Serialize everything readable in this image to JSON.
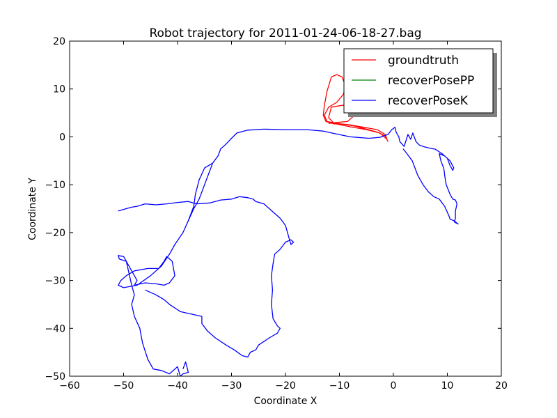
{
  "chart_data": {
    "type": "line",
    "title": "Robot trajectory for 2011-01-24-06-18-27.bag",
    "xlabel": "Coordinate X",
    "ylabel": "Coordinate Y",
    "xlim": [
      -60,
      20
    ],
    "ylim": [
      -50,
      20
    ],
    "xticks": [
      "−60",
      "−50",
      "−40",
      "−30",
      "−20",
      "−10",
      "0",
      "10",
      "20"
    ],
    "yticks": [
      "20",
      "10",
      "0",
      "−10",
      "−20",
      "−30",
      "−40",
      "−50"
    ],
    "grid": false,
    "legend_position": "top-right",
    "series": [
      {
        "name": "groundtruth",
        "color": "#ff0000",
        "points": [
          [
            -1,
            -1
          ],
          [
            -1.5,
            0.2
          ],
          [
            -3,
            1
          ],
          [
            -5,
            1.6
          ],
          [
            -7,
            2.2
          ],
          [
            -9,
            2.6
          ],
          [
            -11,
            2.7
          ],
          [
            -12.5,
            3.2
          ],
          [
            -13,
            4.5
          ],
          [
            -12.8,
            6.5
          ],
          [
            -12.3,
            9.5
          ],
          [
            -11.5,
            12.5
          ],
          [
            -10.5,
            13
          ],
          [
            -9.5,
            12.5
          ],
          [
            -9,
            11
          ],
          [
            -9.2,
            9
          ],
          [
            -10.5,
            7.2
          ],
          [
            -12,
            6.2
          ],
          [
            -12.8,
            4.5
          ],
          [
            -12.3,
            3.2
          ],
          [
            -10.5,
            2.8
          ],
          [
            -8,
            2.5
          ],
          [
            -5.5,
            2
          ],
          [
            -3,
            1.5
          ],
          [
            -1.5,
            0.5
          ],
          [
            -1.2,
            -0.5
          ],
          [
            -2.5,
            0.8
          ],
          [
            -5,
            1.5
          ],
          [
            -8,
            2.1
          ],
          [
            -11,
            2.8
          ],
          [
            -12,
            4
          ],
          [
            -11.5,
            6.2
          ],
          [
            -10,
            6.5
          ],
          [
            -8,
            6.8
          ],
          [
            -7,
            6.2
          ],
          [
            -7.2,
            4.5
          ],
          [
            -8.5,
            3.2
          ],
          [
            -10.5,
            3
          ],
          [
            -12,
            2.8
          ]
        ]
      },
      {
        "name": "recoverPosePP",
        "color": "#008000",
        "points": []
      },
      {
        "name": "recoverPoseK",
        "color": "#0000ff",
        "points": [
          [
            -4.5,
            -0.3
          ],
          [
            -8,
            0
          ],
          [
            -11,
            0.7
          ],
          [
            -13,
            1.2
          ],
          [
            -16,
            1.5
          ],
          [
            -20,
            1.5
          ],
          [
            -24,
            1.6
          ],
          [
            -27,
            1.4
          ],
          [
            -29,
            0.8
          ],
          [
            -30,
            -0.3
          ],
          [
            -31,
            -1.5
          ],
          [
            -32,
            -2.5
          ],
          [
            -32.5,
            -4
          ],
          [
            -33.5,
            -5.5
          ],
          [
            -35,
            -6.5
          ],
          [
            -36,
            -9
          ],
          [
            -36.7,
            -12
          ],
          [
            -37,
            -14.5
          ],
          [
            -38,
            -17.5
          ],
          [
            -39,
            -20
          ],
          [
            -40.5,
            -22.5
          ],
          [
            -41.5,
            -24.5
          ],
          [
            -43,
            -27
          ],
          [
            -45,
            -29
          ],
          [
            -47.5,
            -31
          ],
          [
            -50,
            -31.5
          ],
          [
            -51,
            -31
          ],
          [
            -50.5,
            -30
          ],
          [
            -49.5,
            -29
          ],
          [
            -48,
            -28
          ],
          [
            -45.5,
            -27.5
          ],
          [
            -43.5,
            -27.5
          ],
          [
            -42.5,
            -26
          ],
          [
            -42,
            -25
          ],
          [
            -41,
            -26
          ],
          [
            -40.5,
            -29
          ],
          [
            -41.5,
            -30.5
          ],
          [
            -42.5,
            -31
          ],
          [
            -44,
            -30.7
          ],
          [
            -46,
            -30.5
          ],
          [
            -48,
            -31
          ],
          [
            -47.5,
            -30
          ],
          [
            -48.5,
            -28
          ],
          [
            -49.5,
            -26
          ],
          [
            -50,
            -25
          ],
          [
            -51,
            -24.8
          ],
          [
            -50.8,
            -25.5
          ],
          [
            -49.5,
            -26
          ],
          [
            -49,
            -28.5
          ],
          [
            -48.5,
            -31
          ],
          [
            -48,
            -33
          ],
          [
            -48.5,
            -35
          ],
          [
            -48,
            -37.5
          ],
          [
            -47,
            -40
          ],
          [
            -46.5,
            -43
          ],
          [
            -45.5,
            -46.5
          ],
          [
            -44.5,
            -48.5
          ],
          [
            -43,
            -48.8
          ],
          [
            -41.5,
            -49.5
          ],
          [
            -40,
            -48
          ],
          [
            -39.5,
            -50
          ],
          [
            -39,
            -49.5
          ],
          [
            -38,
            -49.2
          ],
          [
            -38.5,
            -47
          ],
          [
            -39,
            -48.5
          ]
        ]
      },
      {
        "name": "",
        "color": "#0000ff",
        "points": [
          [
            -51,
            -15.5
          ],
          [
            -49.5,
            -15
          ],
          [
            -48.5,
            -14.7
          ],
          [
            -47.5,
            -14.5
          ],
          [
            -46,
            -14
          ],
          [
            -44,
            -14.2
          ],
          [
            -42,
            -14
          ],
          [
            -40,
            -13.7
          ],
          [
            -38,
            -13.5
          ],
          [
            -36.5,
            -14
          ],
          [
            -34,
            -13.8
          ],
          [
            -32,
            -13.2
          ],
          [
            -30,
            -13
          ],
          [
            -28.5,
            -12.5
          ],
          [
            -27,
            -12.7
          ],
          [
            -26,
            -13
          ],
          [
            -25.5,
            -13.5
          ],
          [
            -24,
            -14
          ],
          [
            -22.5,
            -15.5
          ],
          [
            -21,
            -17
          ],
          [
            -20,
            -18.5
          ],
          [
            -19.5,
            -20.5
          ],
          [
            -19,
            -22.5
          ],
          [
            -18.5,
            -22
          ],
          [
            -19,
            -21.5
          ],
          [
            -20,
            -22
          ],
          [
            -21,
            -23.5
          ],
          [
            -22,
            -24.5
          ],
          [
            -22.3,
            -26.5
          ],
          [
            -22.6,
            -29
          ],
          [
            -22.4,
            -32
          ],
          [
            -22.6,
            -35
          ],
          [
            -22.3,
            -38
          ],
          [
            -21.5,
            -39.5
          ],
          [
            -21,
            -40
          ],
          [
            -21.5,
            -41
          ],
          [
            -23,
            -42
          ],
          [
            -25,
            -43.5
          ],
          [
            -25.5,
            -44.5
          ],
          [
            -26.5,
            -45
          ],
          [
            -27,
            -46
          ],
          [
            -28,
            -45.7
          ],
          [
            -29.5,
            -44.5
          ],
          [
            -31,
            -43.5
          ],
          [
            -33,
            -42
          ],
          [
            -34.5,
            -40.5
          ],
          [
            -35.5,
            -39
          ],
          [
            -35.5,
            -37.5
          ],
          [
            -37.5,
            -37
          ],
          [
            -39.5,
            -36.5
          ],
          [
            -41.5,
            -35
          ],
          [
            -42.5,
            -34
          ],
          [
            -44,
            -33
          ],
          [
            -46,
            -32
          ]
        ]
      },
      {
        "name": "",
        "color": "#0000ff",
        "points": [
          [
            -33.5,
            -5.5
          ],
          [
            -35,
            -10
          ],
          [
            -36,
            -13
          ],
          [
            -37,
            -15
          ],
          [
            -38,
            -17.5
          ]
        ]
      },
      {
        "name": "",
        "color": "#0000ff",
        "points": [
          [
            -4.5,
            -0.3
          ],
          [
            -2.5,
            -0.1
          ],
          [
            -1,
            0.5
          ],
          [
            -0.3,
            1.5
          ],
          [
            0.3,
            2
          ],
          [
            0.5,
            1
          ],
          [
            1,
            0
          ],
          [
            1.2,
            -1
          ],
          [
            2,
            -2
          ],
          [
            2.7,
            0.5
          ],
          [
            3.2,
            -0.5
          ],
          [
            3.6,
            0.8
          ],
          [
            4.2,
            -1
          ],
          [
            4.8,
            -1.7
          ],
          [
            5.5,
            -2
          ],
          [
            6.5,
            -2.3
          ],
          [
            7.8,
            -2.6
          ],
          [
            9,
            -3.5
          ],
          [
            10,
            -4.5
          ],
          [
            10.5,
            -6
          ],
          [
            11,
            -7
          ],
          [
            11.2,
            -6.5
          ],
          [
            10.5,
            -5
          ],
          [
            9.5,
            -4
          ],
          [
            8.5,
            -3.5
          ],
          [
            8.8,
            -5
          ],
          [
            9.3,
            -6.5
          ],
          [
            9.4,
            -7
          ],
          [
            9.5,
            -8
          ],
          [
            9.8,
            -10
          ],
          [
            10.5,
            -12
          ],
          [
            11,
            -13
          ],
          [
            11.5,
            -13.2
          ],
          [
            11.8,
            -14
          ],
          [
            11.5,
            -15.5
          ],
          [
            11.5,
            -17
          ],
          [
            11.3,
            -17.8
          ],
          [
            12,
            -18.2
          ],
          [
            11.2,
            -17.5
          ],
          [
            10.5,
            -17.2
          ],
          [
            10.3,
            -16.5
          ],
          [
            9.5,
            -14.5
          ],
          [
            8.5,
            -13
          ],
          [
            7.5,
            -12.5
          ],
          [
            6.5,
            -11.5
          ],
          [
            5.5,
            -10
          ],
          [
            5,
            -9
          ],
          [
            4.5,
            -8
          ],
          [
            4,
            -6.5
          ],
          [
            3.5,
            -5
          ],
          [
            2.5,
            -3.5
          ],
          [
            1.8,
            -2.5
          ]
        ]
      }
    ]
  }
}
